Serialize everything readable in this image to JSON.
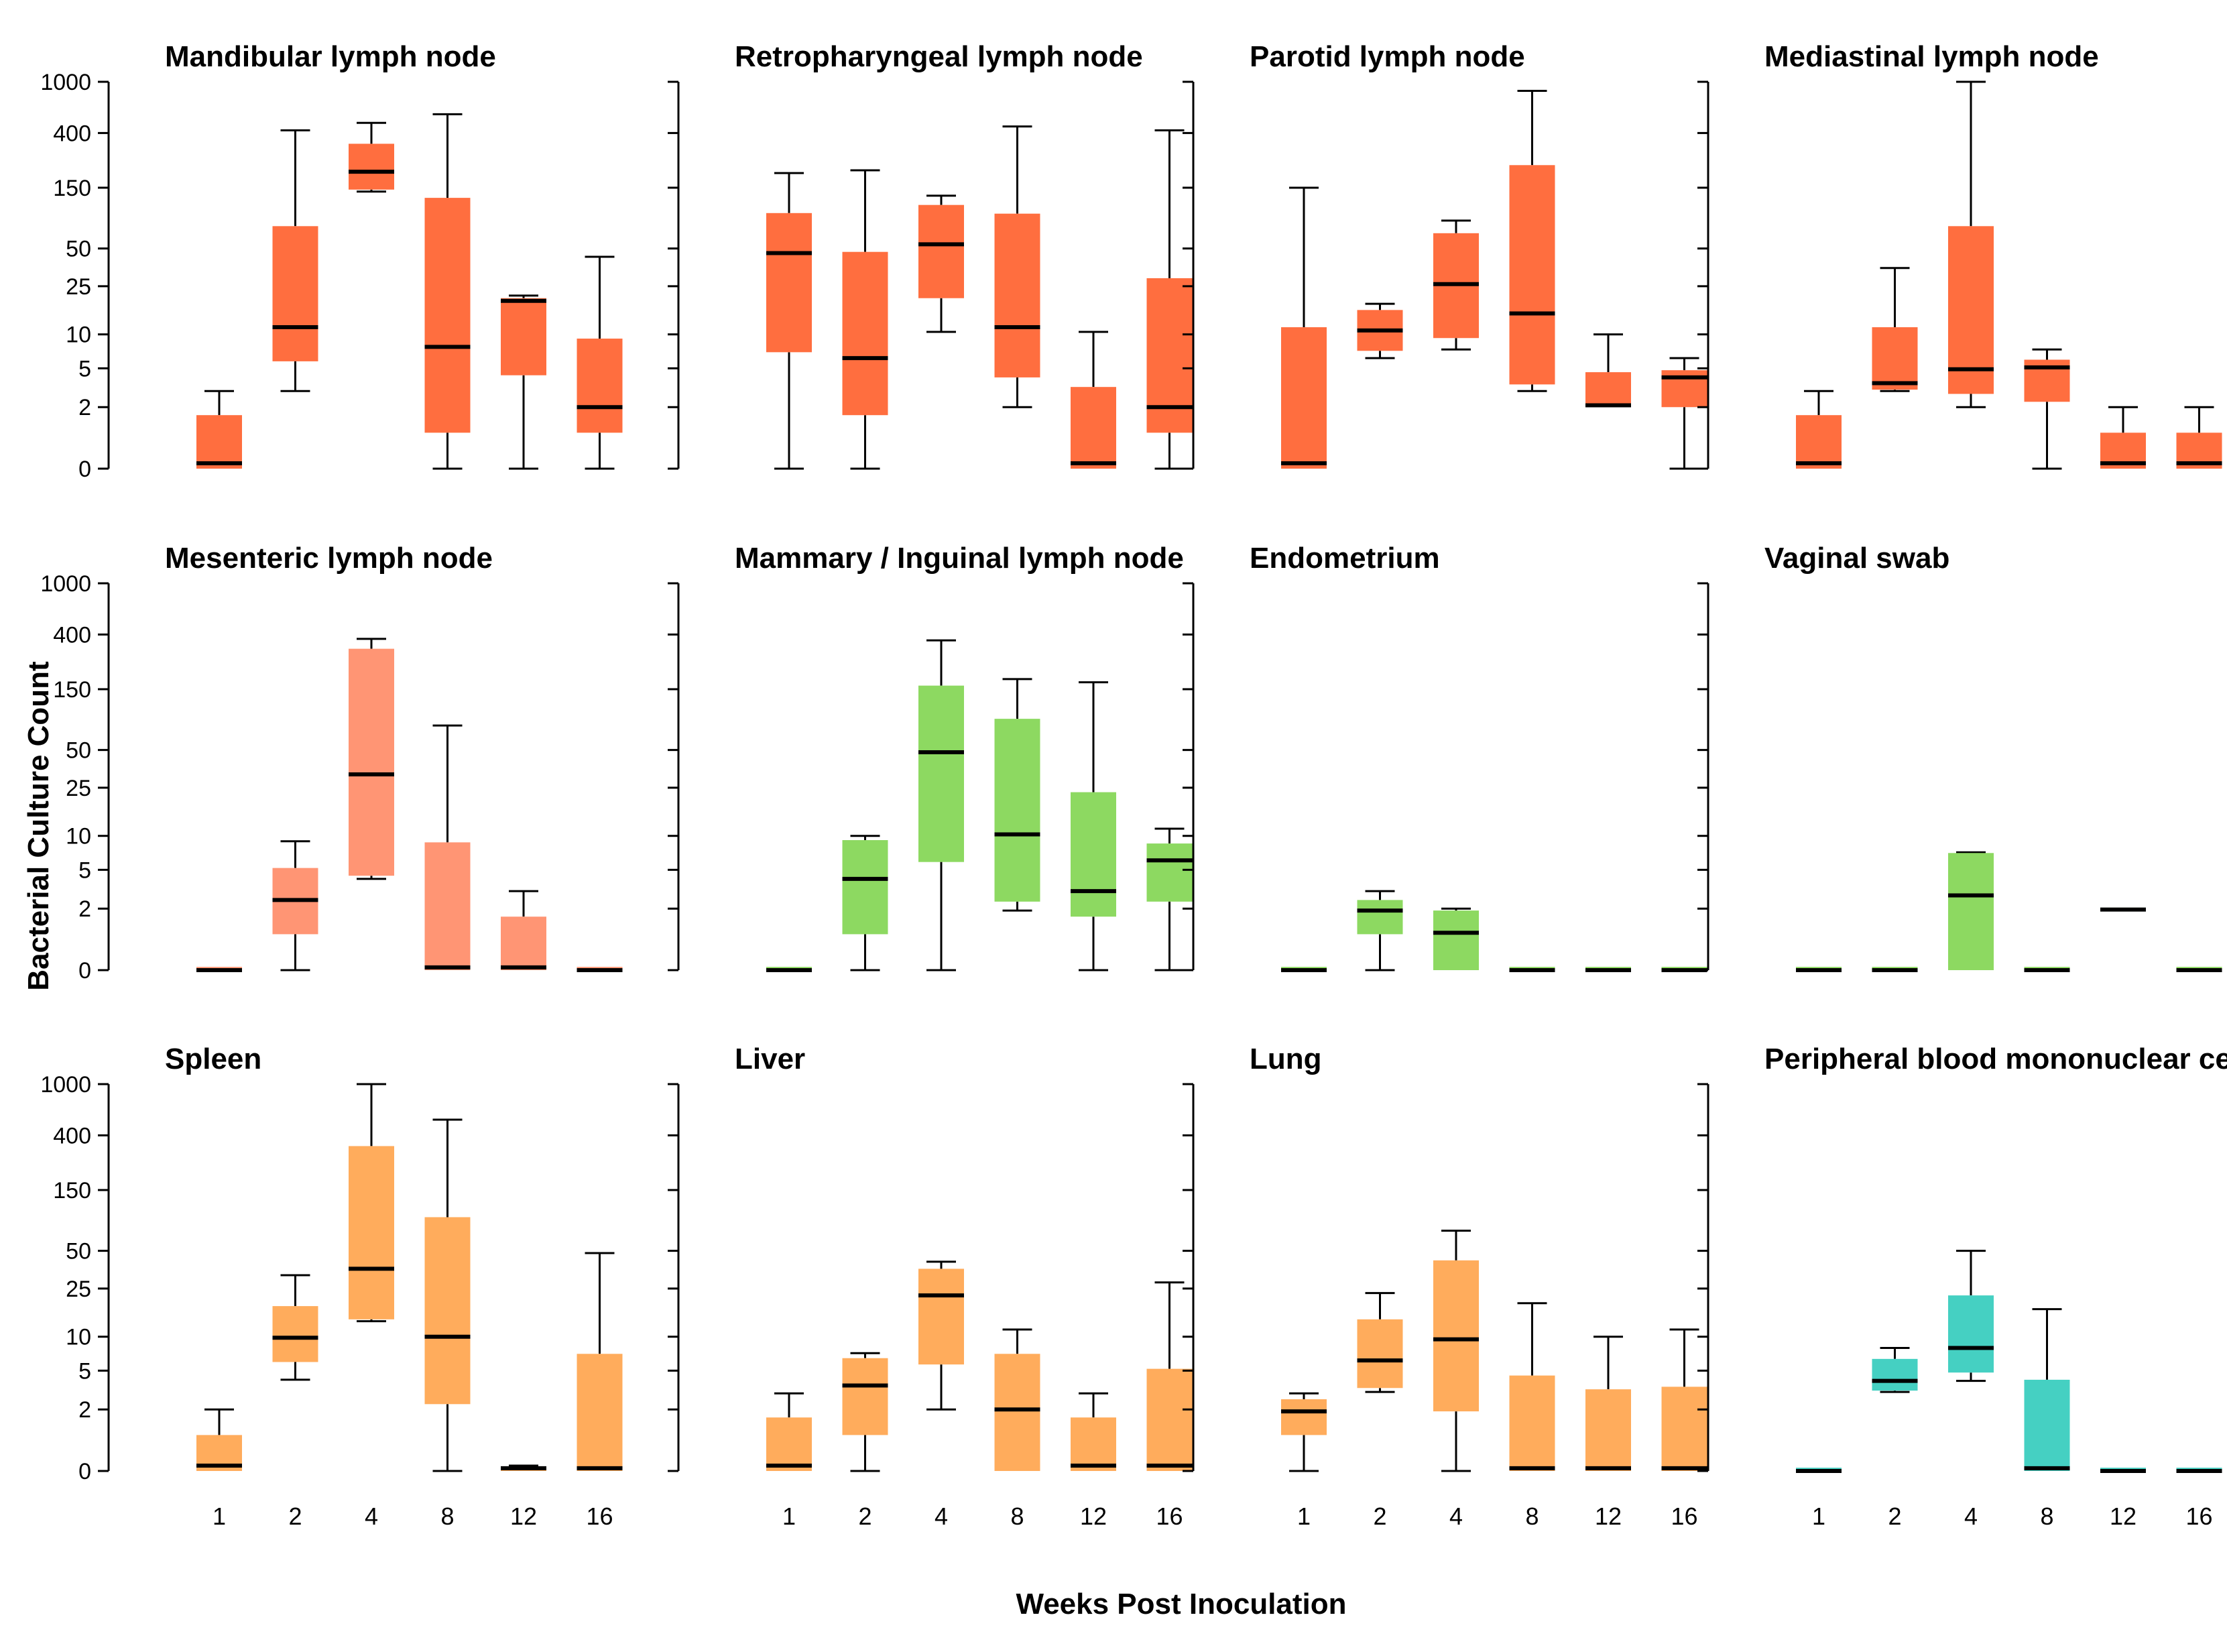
{
  "figure": {
    "ylabel": "Bacterial Culture Count",
    "xlabel": "Weeks Post Inoculation"
  },
  "colors": {
    "red": "#FF6E3F",
    "salmon": "#FF9574",
    "green": "#8DD961",
    "orange": "#FFAC5C",
    "teal": "#45D0C2"
  },
  "chart_data": [
    {
      "type": "box",
      "title": "Mandibular lymph node",
      "color_key": "red",
      "categories": [
        "1",
        "2",
        "4",
        "8",
        "12",
        "16"
      ],
      "y_ticks": [
        "1000",
        "400",
        "150",
        "50",
        "25",
        "10",
        "5",
        "2",
        "0"
      ],
      "scale": "log(y+1)",
      "ylim": [
        0,
        1000
      ],
      "boxes": [
        {
          "min": 0,
          "q1": 0,
          "median": 0.1,
          "q3": 1.6,
          "max": 3
        },
        {
          "min": 3,
          "q1": 5.8,
          "median": 11.5,
          "q3": 75,
          "max": 420
        },
        {
          "min": 140,
          "q1": 145,
          "median": 200,
          "q3": 330,
          "max": 480
        },
        {
          "min": 0,
          "q1": 0.9,
          "median": 7.8,
          "q3": 125,
          "max": 560
        },
        {
          "min": 0,
          "q1": 4.3,
          "median": 19,
          "q3": 20,
          "max": 21
        },
        {
          "min": 0,
          "q1": 0.9,
          "median": 2,
          "q3": 9.2,
          "max": 43
        }
      ]
    },
    {
      "type": "box",
      "title": "Retropharyngeal lymph node",
      "color_key": "red",
      "categories": [
        "1",
        "2",
        "4",
        "8",
        "12",
        "16"
      ],
      "y_ticks": [
        "1000",
        "400",
        "150",
        "50",
        "25",
        "10",
        "5",
        "2",
        "0"
      ],
      "scale": "log(y+1)",
      "ylim": [
        0,
        1000
      ],
      "boxes": [
        {
          "min": 0,
          "q1": 7,
          "median": 46,
          "q3": 95,
          "max": 195
        },
        {
          "min": 0,
          "q1": 1.6,
          "median": 6.2,
          "q3": 47,
          "max": 205
        },
        {
          "min": 10.5,
          "q1": 20,
          "median": 54,
          "q3": 110,
          "max": 130
        },
        {
          "min": 2,
          "q1": 4.1,
          "median": 11.5,
          "q3": 94,
          "max": 450
        },
        {
          "min": 0,
          "q1": 0,
          "median": 0.1,
          "q3": 3.3,
          "max": 10.5
        },
        {
          "min": 0,
          "q1": 0.9,
          "median": 2,
          "q3": 29,
          "max": 420
        }
      ]
    },
    {
      "type": "box",
      "title": "Parotid lymph node",
      "color_key": "red",
      "categories": [
        "1",
        "2",
        "4",
        "8",
        "12",
        "16"
      ],
      "y_ticks": [
        "1000",
        "400",
        "150",
        "50",
        "25",
        "10",
        "5",
        "2",
        "0"
      ],
      "scale": "log(y+1)",
      "ylim": [
        0,
        1000
      ],
      "boxes": [
        {
          "min": 0,
          "q1": 0,
          "median": 0.1,
          "q3": 11.5,
          "max": 150
        },
        {
          "min": 6.2,
          "q1": 7.2,
          "median": 10.8,
          "q3": 16,
          "max": 18
        },
        {
          "min": 7.4,
          "q1": 9.3,
          "median": 26,
          "q3": 66,
          "max": 83
        },
        {
          "min": 3,
          "q1": 3.5,
          "median": 15,
          "q3": 225,
          "max": 850
        },
        {
          "min": 2,
          "q1": 2,
          "median": 2.1,
          "q3": 4.6,
          "max": 10
        },
        {
          "min": 0,
          "q1": 2,
          "median": 4.1,
          "q3": 4.8,
          "max": 6.2
        }
      ]
    },
    {
      "type": "box",
      "title": "Mediastinal lymph node",
      "color_key": "red",
      "categories": [
        "1",
        "2",
        "4",
        "8",
        "12",
        "16"
      ],
      "y_ticks": [
        "1000",
        "400",
        "150",
        "50",
        "25",
        "10",
        "5",
        "2",
        "0"
      ],
      "scale": "log(y+1)",
      "ylim": [
        0,
        1000
      ],
      "boxes": [
        {
          "min": 0,
          "q1": 0,
          "median": 0.1,
          "q3": 1.6,
          "max": 3
        },
        {
          "min": 3,
          "q1": 3.1,
          "median": 3.6,
          "q3": 11.5,
          "max": 35
        },
        {
          "min": 2,
          "q1": 2.8,
          "median": 4.9,
          "q3": 75,
          "max": 1000
        },
        {
          "min": 0,
          "q1": 2.3,
          "median": 5.1,
          "q3": 6,
          "max": 7.4
        },
        {
          "min": 0,
          "q1": 0,
          "median": 0.1,
          "q3": 0.9,
          "max": 2
        },
        {
          "min": 0,
          "q1": 0,
          "median": 0.1,
          "q3": 0.9,
          "max": 2
        }
      ]
    },
    {
      "type": "box",
      "title": "Mesenteric lymph node",
      "color_key": "salmon",
      "categories": [
        "1",
        "2",
        "4",
        "8",
        "12",
        "16"
      ],
      "y_ticks": [
        "1000",
        "400",
        "150",
        "50",
        "25",
        "10",
        "5",
        "2",
        "0"
      ],
      "scale": "log(y+1)",
      "ylim": [
        0,
        1000
      ],
      "boxes": [
        {
          "min": 0,
          "q1": 0,
          "median": 0,
          "q3": 0.06,
          "max": 0.06
        },
        {
          "min": 0,
          "q1": 0.9,
          "median": 2.5,
          "q3": 5.2,
          "max": 9
        },
        {
          "min": 4.1,
          "q1": 4.4,
          "median": 32,
          "q3": 310,
          "max": 370
        },
        {
          "min": 0,
          "q1": 0,
          "median": 0.05,
          "q3": 8.8,
          "max": 78
        },
        {
          "min": 0,
          "q1": 0,
          "median": 0.05,
          "q3": 1.6,
          "max": 3.1
        },
        {
          "min": 0,
          "q1": 0,
          "median": 0,
          "q3": 0.06,
          "max": 0.06
        }
      ]
    },
    {
      "type": "box",
      "title": "Mammary / Inguinal lymph node",
      "color_key": "green",
      "categories": [
        "1",
        "2",
        "4",
        "8",
        "12",
        "16"
      ],
      "y_ticks": [
        "1000",
        "400",
        "150",
        "50",
        "25",
        "10",
        "5",
        "2",
        "0"
      ],
      "scale": "log(y+1)",
      "ylim": [
        0,
        1000
      ],
      "boxes": [
        {
          "min": 0,
          "q1": 0,
          "median": 0,
          "q3": 0.06,
          "max": 0.06
        },
        {
          "min": 0,
          "q1": 0.9,
          "median": 4.1,
          "q3": 9.2,
          "max": 10
        },
        {
          "min": 0,
          "q1": 5.9,
          "median": 48,
          "q3": 160,
          "max": 360
        },
        {
          "min": 1.9,
          "q1": 2.4,
          "median": 10.3,
          "q3": 88,
          "max": 180
        },
        {
          "min": 0,
          "q1": 1.6,
          "median": 3.1,
          "q3": 23,
          "max": 170
        },
        {
          "min": 0,
          "q1": 2.4,
          "median": 6.1,
          "q3": 8.6,
          "max": 11.5
        }
      ]
    },
    {
      "type": "box",
      "title": "Endometrium",
      "color_key": "green",
      "categories": [
        "1",
        "2",
        "4",
        "8",
        "12",
        "16"
      ],
      "y_ticks": [
        "1000",
        "400",
        "150",
        "50",
        "25",
        "10",
        "5",
        "2",
        "0"
      ],
      "scale": "log(y+1)",
      "ylim": [
        0,
        1000
      ],
      "boxes": [
        {
          "min": 0,
          "q1": 0,
          "median": 0,
          "q3": 0.06,
          "max": 0.06
        },
        {
          "min": 0,
          "q1": 0.9,
          "median": 1.9,
          "q3": 2.5,
          "max": 3.1
        },
        {
          "min": 0,
          "q1": 0,
          "median": 0.95,
          "q3": 1.9,
          "max": 2
        },
        {
          "min": 0,
          "q1": 0,
          "median": 0,
          "q3": 0.06,
          "max": 0.06
        },
        {
          "min": 0,
          "q1": 0,
          "median": 0,
          "q3": 0.06,
          "max": 0.06
        },
        {
          "min": 0,
          "q1": 0,
          "median": 0,
          "q3": 0.06,
          "max": 0.06
        }
      ]
    },
    {
      "type": "box",
      "title": "Vaginal swab",
      "color_key": "green",
      "categories": [
        "1",
        "2",
        "4",
        "8",
        "12",
        "16"
      ],
      "y_ticks": [
        "1000",
        "400",
        "150",
        "50",
        "25",
        "10",
        "5",
        "2",
        "0"
      ],
      "scale": "log(y+1)",
      "ylim": [
        0,
        1000
      ],
      "boxes": [
        {
          "min": 0,
          "q1": 0,
          "median": 0,
          "q3": 0.06,
          "max": 0.06
        },
        {
          "min": 0,
          "q1": 0,
          "median": 0,
          "q3": 0.06,
          "max": 0.06
        },
        {
          "min": 0,
          "q1": 0,
          "median": 2.8,
          "q3": 7.1,
          "max": 7.2
        },
        {
          "min": 0,
          "q1": 0,
          "median": 0,
          "q3": 0.06,
          "max": 0.06
        },
        {
          "min": 1.85,
          "q1": 1.85,
          "median": 1.95,
          "q3": 2.05,
          "max": 2.05
        },
        {
          "min": 0,
          "q1": 0,
          "median": 0,
          "q3": 0.06,
          "max": 0.06
        }
      ]
    },
    {
      "type": "box",
      "title": "Spleen",
      "color_key": "orange",
      "categories": [
        "1",
        "2",
        "4",
        "8",
        "12",
        "16"
      ],
      "y_ticks": [
        "1000",
        "400",
        "150",
        "50",
        "25",
        "10",
        "5",
        "2",
        "0"
      ],
      "scale": "log(y+1)",
      "ylim": [
        0,
        1000
      ],
      "boxes": [
        {
          "min": 0,
          "q1": 0,
          "median": 0.1,
          "q3": 0.9,
          "max": 2
        },
        {
          "min": 4.1,
          "q1": 6,
          "median": 9.8,
          "q3": 18,
          "max": 32
        },
        {
          "min": 13.5,
          "q1": 14,
          "median": 36,
          "q3": 330,
          "max": 1000
        },
        {
          "min": 0,
          "q1": 2.3,
          "median": 10,
          "q3": 92,
          "max": 530
        },
        {
          "min": 0,
          "q1": 0,
          "median": 0.05,
          "q3": 0.08,
          "max": 0.1
        },
        {
          "min": 0,
          "q1": 0,
          "median": 0.05,
          "q3": 7.1,
          "max": 48
        }
      ]
    },
    {
      "type": "box",
      "title": "Liver",
      "color_key": "orange",
      "categories": [
        "1",
        "2",
        "4",
        "8",
        "12",
        "16"
      ],
      "y_ticks": [
        "1000",
        "400",
        "150",
        "50",
        "25",
        "10",
        "5",
        "2",
        "0"
      ],
      "scale": "log(y+1)",
      "ylim": [
        0,
        1000
      ],
      "boxes": [
        {
          "min": 0,
          "q1": 0,
          "median": 0.1,
          "q3": 1.6,
          "max": 3
        },
        {
          "min": 0,
          "q1": 0.9,
          "median": 3.6,
          "q3": 6.5,
          "max": 7.2
        },
        {
          "min": 2,
          "q1": 5.7,
          "median": 22,
          "q3": 36,
          "max": 41
        },
        {
          "min": 0,
          "q1": 0,
          "median": 2,
          "q3": 7.1,
          "max": 11.5
        },
        {
          "min": 0,
          "q1": 0,
          "median": 0.1,
          "q3": 1.6,
          "max": 3
        },
        {
          "min": 0,
          "q1": 0,
          "median": 0.1,
          "q3": 5.2,
          "max": 28
        }
      ]
    },
    {
      "type": "box",
      "title": "Lung",
      "color_key": "orange",
      "categories": [
        "1",
        "2",
        "4",
        "8",
        "12",
        "16"
      ],
      "y_ticks": [
        "1000",
        "400",
        "150",
        "50",
        "25",
        "10",
        "5",
        "2",
        "0"
      ],
      "scale": "log(y+1)",
      "ylim": [
        0,
        1000
      ],
      "boxes": [
        {
          "min": 0,
          "q1": 0.9,
          "median": 1.9,
          "q3": 2.6,
          "max": 3
        },
        {
          "min": 3.1,
          "q1": 3.4,
          "median": 6.2,
          "q3": 14,
          "max": 23
        },
        {
          "min": 0,
          "q1": 1.9,
          "median": 9.5,
          "q3": 42,
          "max": 72
        },
        {
          "min": 0,
          "q1": 0,
          "median": 0.05,
          "q3": 4.5,
          "max": 19
        },
        {
          "min": 0,
          "q1": 0,
          "median": 0.05,
          "q3": 3.3,
          "max": 10
        },
        {
          "min": 0,
          "q1": 0,
          "median": 0.05,
          "q3": 3.5,
          "max": 11.5
        }
      ]
    },
    {
      "type": "box",
      "title": "Peripheral blood mononuclear cell",
      "color_key": "teal",
      "categories": [
        "1",
        "2",
        "4",
        "8",
        "12",
        "16"
      ],
      "y_ticks": [
        "1000",
        "400",
        "150",
        "50",
        "25",
        "10",
        "5",
        "2",
        "0"
      ],
      "scale": "log(y+1)",
      "ylim": [
        0,
        1000
      ],
      "boxes": [
        {
          "min": 0,
          "q1": 0,
          "median": 0,
          "q3": 0.06,
          "max": 0.06
        },
        {
          "min": 3.1,
          "q1": 3.2,
          "median": 4,
          "q3": 6.4,
          "max": 8
        },
        {
          "min": 4,
          "q1": 4.8,
          "median": 8,
          "q3": 22,
          "max": 50
        },
        {
          "min": 0,
          "q1": 0,
          "median": 0.05,
          "q3": 4.1,
          "max": 17
        },
        {
          "min": 0,
          "q1": 0,
          "median": 0,
          "q3": 0.06,
          "max": 0.06
        },
        {
          "min": 0,
          "q1": 0,
          "median": 0,
          "q3": 0.06,
          "max": 0.06
        }
      ]
    }
  ]
}
